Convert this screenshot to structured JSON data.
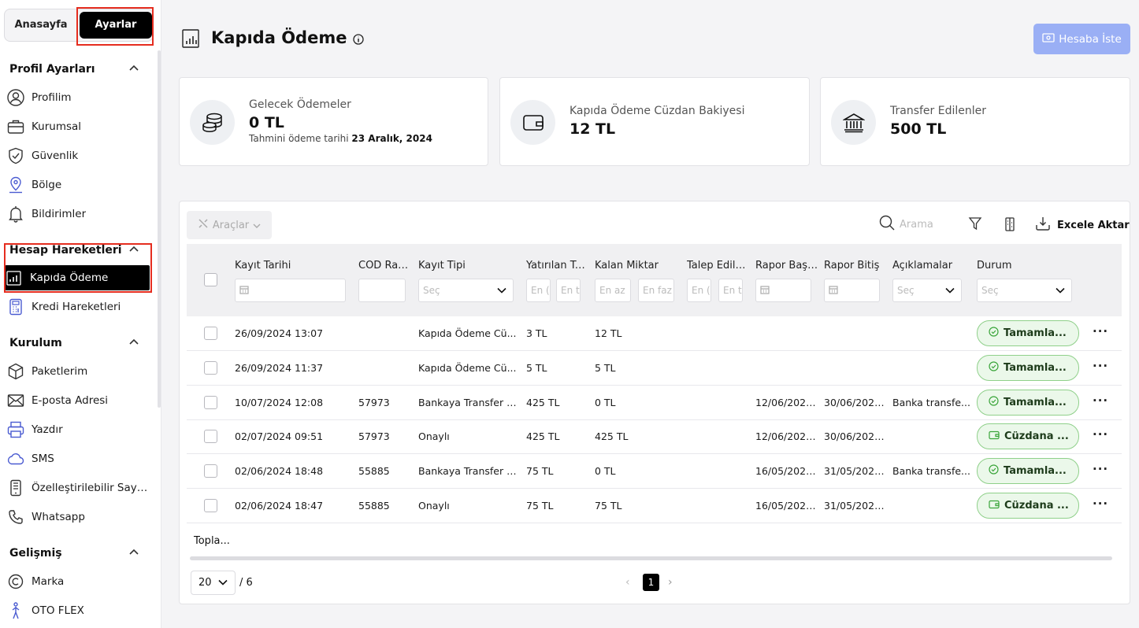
{
  "nav": {
    "home_tab": "Anasayfa",
    "settings_tab": "Ayarlar"
  },
  "sidebar": {
    "sections": [
      {
        "title": "Profil Ayarları",
        "items": [
          "Profilim",
          "Kurumsal",
          "Güvenlik",
          "Bölge",
          "Bildirimler"
        ]
      },
      {
        "title": "Hesap Hareketleri",
        "items": [
          "Kapıda Ödeme",
          "Kredi Hareketleri"
        ]
      },
      {
        "title": "Kurulum",
        "items": [
          "Paketlerim",
          "E-posta Adresi",
          "Yazdır",
          "SMS",
          "Özelleştirilebilir Sayfa...",
          "Whatsapp"
        ]
      },
      {
        "title": "Gelişmiş",
        "items": [
          "Marka",
          "OTO FLEX"
        ]
      }
    ],
    "active_item": "Kapıda Ödeme"
  },
  "header": {
    "title": "Kapıda Ödeme",
    "request_button": "Hesaba İste"
  },
  "cards": [
    {
      "title": "Gelecek Ödemeler",
      "value": "0 TL",
      "sub_label": "Tahmini ödeme tarihi",
      "sub_value": "23 Aralık, 2024"
    },
    {
      "title": "Kapıda Ödeme Cüzdan Bakiyesi",
      "value": "12 TL"
    },
    {
      "title": "Transfer Edilenler",
      "value": "500 TL"
    }
  ],
  "toolbar": {
    "tools": "Araçlar",
    "search_placeholder": "Arama",
    "export": "Excele Aktar"
  },
  "table": {
    "columns": [
      "Kayıt Tarihi",
      "COD Rap...",
      "Kayıt Tipi",
      "Yatırılan Tu...",
      "Kalan Miktar",
      "Talep Edile...",
      "Rapor Başl...",
      "Rapor Bitiş",
      "Açıklamalar",
      "Durum"
    ],
    "filters": {
      "select": "Seç",
      "min": "En az",
      "max": "En faz",
      "min_short": "En (",
      "max_short": "En t"
    },
    "rows": [
      {
        "date": "26/09/2024 13:07",
        "cod": "",
        "type": "Kapıda Ödeme Cü...",
        "deposited": "3 TL",
        "remaining": "12 TL",
        "requested": "",
        "start": "",
        "end": "",
        "desc": "",
        "status": "Tamamla...",
        "status_icon": "check"
      },
      {
        "date": "26/09/2024 11:37",
        "cod": "",
        "type": "Kapıda Ödeme Cü...",
        "deposited": "5 TL",
        "remaining": "5 TL",
        "requested": "",
        "start": "",
        "end": "",
        "desc": "",
        "status": "Tamamla...",
        "status_icon": "check"
      },
      {
        "date": "10/07/2024 12:08",
        "cod": "57973",
        "type": "Bankaya Transfer T...",
        "deposited": "425 TL",
        "remaining": "0 TL",
        "requested": "",
        "start": "12/06/2024 ...",
        "end": "30/06/2024...",
        "desc": "Banka transfe...",
        "status": "Tamamla...",
        "status_icon": "check"
      },
      {
        "date": "02/07/2024 09:51",
        "cod": "57973",
        "type": "Onaylı",
        "deposited": "425 TL",
        "remaining": "425 TL",
        "requested": "",
        "start": "12/06/2024 ...",
        "end": "30/06/2024...",
        "desc": "",
        "status": "Cüzdana ...",
        "status_icon": "wallet"
      },
      {
        "date": "02/06/2024 18:48",
        "cod": "55885",
        "type": "Bankaya Transfer T...",
        "deposited": "75 TL",
        "remaining": "0 TL",
        "requested": "",
        "start": "16/05/2024 ...",
        "end": "31/05/2024 ...",
        "desc": "Banka transfe...",
        "status": "Tamamla...",
        "status_icon": "check"
      },
      {
        "date": "02/06/2024 18:47",
        "cod": "55885",
        "type": "Onaylı",
        "deposited": "75 TL",
        "remaining": "75 TL",
        "requested": "",
        "start": "16/05/2024 ...",
        "end": "31/05/2024 ...",
        "desc": "",
        "status": "Cüzdana ...",
        "status_icon": "wallet"
      }
    ],
    "total_label": "Topla..."
  },
  "pagination": {
    "page_size": "20",
    "total_pages": "/ 6",
    "current_page": "1",
    "prev": "‹",
    "next": "›"
  },
  "colors": {
    "accent_button": "#9aaff5",
    "status_bg": "#ebf8ea",
    "status_border": "#8fd08a",
    "highlight": "#e52d1f"
  }
}
